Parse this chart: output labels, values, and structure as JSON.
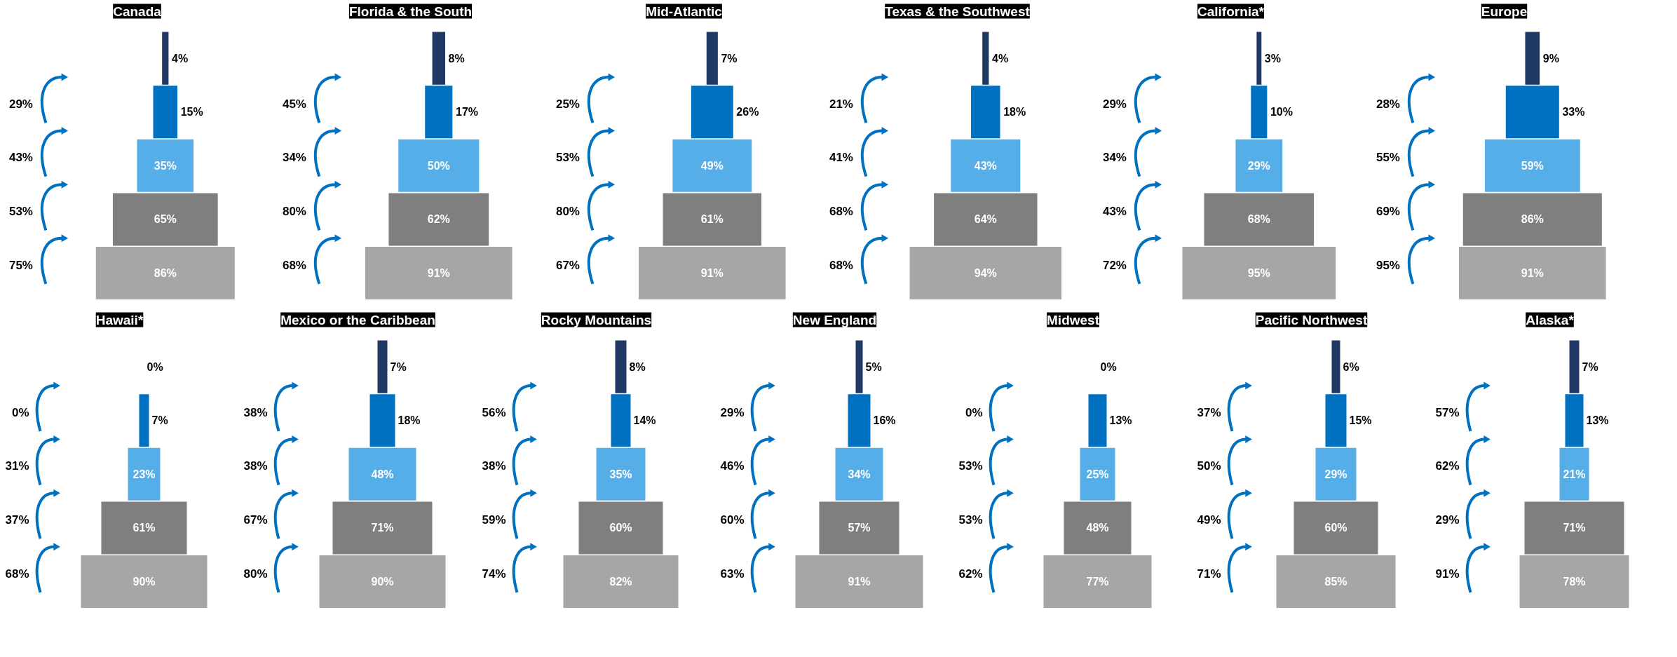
{
  "chart_data": [
    {
      "type": "other",
      "data_labels": true,
      "title": "Canada",
      "categories": [
        null,
        null,
        null,
        null,
        null
      ],
      "values": [
        4,
        15,
        35,
        65,
        86
      ],
      "value_labels": [
        "4%",
        "15%",
        "35%",
        "65%",
        "86%"
      ],
      "colors": [
        "#1f3864",
        "#0070c0",
        "#56aee8",
        "#7f7f7f",
        "#a6a6a6"
      ],
      "annotations": [
        "29%",
        "43%",
        "53%",
        "75%"
      ]
    },
    {
      "type": "other",
      "data_labels": true,
      "title": "Florida & the South",
      "categories": [
        null,
        null,
        null,
        null,
        null
      ],
      "values": [
        8,
        17,
        50,
        62,
        91
      ],
      "value_labels": [
        "8%",
        "17%",
        "50%",
        "62%",
        "91%"
      ],
      "colors": [
        "#1f3864",
        "#0070c0",
        "#56aee8",
        "#7f7f7f",
        "#a6a6a6"
      ],
      "annotations": [
        "45%",
        "34%",
        "80%",
        "68%"
      ]
    },
    {
      "type": "other",
      "data_labels": true,
      "title": "Mid-Atlantic",
      "categories": [
        null,
        null,
        null,
        null,
        null
      ],
      "values": [
        7,
        26,
        49,
        61,
        91
      ],
      "value_labels": [
        "7%",
        "26%",
        "49%",
        "61%",
        "91%"
      ],
      "colors": [
        "#1f3864",
        "#0070c0",
        "#56aee8",
        "#7f7f7f",
        "#a6a6a6"
      ],
      "annotations": [
        "25%",
        "53%",
        "80%",
        "67%"
      ]
    },
    {
      "type": "other",
      "data_labels": true,
      "title": "Texas & the Southwest",
      "categories": [
        null,
        null,
        null,
        null,
        null
      ],
      "values": [
        4,
        18,
        43,
        64,
        94
      ],
      "value_labels": [
        "4%",
        "18%",
        "43%",
        "64%",
        "94%"
      ],
      "colors": [
        "#1f3864",
        "#0070c0",
        "#56aee8",
        "#7f7f7f",
        "#a6a6a6"
      ],
      "annotations": [
        "21%",
        "41%",
        "68%",
        "68%"
      ]
    },
    {
      "type": "other",
      "data_labels": true,
      "title": "California*",
      "categories": [
        null,
        null,
        null,
        null,
        null
      ],
      "values": [
        3,
        10,
        29,
        68,
        95
      ],
      "value_labels": [
        "3%",
        "10%",
        "29%",
        "68%",
        "95%"
      ],
      "colors": [
        "#1f3864",
        "#0070c0",
        "#56aee8",
        "#7f7f7f",
        "#a6a6a6"
      ],
      "annotations": [
        "29%",
        "34%",
        "43%",
        "72%"
      ]
    },
    {
      "type": "other",
      "data_labels": true,
      "title": "Europe",
      "categories": [
        null,
        null,
        null,
        null,
        null
      ],
      "values": [
        9,
        33,
        59,
        86,
        91
      ],
      "value_labels": [
        "9%",
        "33%",
        "59%",
        "86%",
        "91%"
      ],
      "colors": [
        "#1f3864",
        "#0070c0",
        "#56aee8",
        "#7f7f7f",
        "#a6a6a6"
      ],
      "annotations": [
        "28%",
        "55%",
        "69%",
        "95%"
      ]
    },
    {
      "type": "other",
      "data_labels": true,
      "title": "Hawaii*",
      "categories": [
        null,
        null,
        null,
        null,
        null
      ],
      "values": [
        0,
        7,
        23,
        61,
        90
      ],
      "value_labels": [
        "0%",
        "7%",
        "23%",
        "61%",
        "90%"
      ],
      "colors": [
        "#1f3864",
        "#0070c0",
        "#56aee8",
        "#7f7f7f",
        "#a6a6a6"
      ],
      "annotations": [
        "0%",
        "31%",
        "37%",
        "68%"
      ]
    },
    {
      "type": "other",
      "data_labels": true,
      "title": "Mexico or the Caribbean",
      "categories": [
        null,
        null,
        null,
        null,
        null
      ],
      "values": [
        7,
        18,
        48,
        71,
        90
      ],
      "value_labels": [
        "7%",
        "18%",
        "48%",
        "71%",
        "90%"
      ],
      "colors": [
        "#1f3864",
        "#0070c0",
        "#56aee8",
        "#7f7f7f",
        "#a6a6a6"
      ],
      "annotations": [
        "38%",
        "38%",
        "67%",
        "80%"
      ]
    },
    {
      "type": "other",
      "data_labels": true,
      "title": "Rocky Mountains",
      "categories": [
        null,
        null,
        null,
        null,
        null
      ],
      "values": [
        8,
        14,
        35,
        60,
        82
      ],
      "value_labels": [
        "8%",
        "14%",
        "35%",
        "60%",
        "82%"
      ],
      "colors": [
        "#1f3864",
        "#0070c0",
        "#56aee8",
        "#7f7f7f",
        "#a6a6a6"
      ],
      "annotations": [
        "56%",
        "38%",
        "59%",
        "74%"
      ]
    },
    {
      "type": "other",
      "data_labels": true,
      "title": "New England",
      "categories": [
        null,
        null,
        null,
        null,
        null
      ],
      "values": [
        5,
        16,
        34,
        57,
        91
      ],
      "value_labels": [
        "5%",
        "16%",
        "34%",
        "57%",
        "91%"
      ],
      "colors": [
        "#1f3864",
        "#0070c0",
        "#56aee8",
        "#7f7f7f",
        "#a6a6a6"
      ],
      "annotations": [
        "29%",
        "46%",
        "60%",
        "63%"
      ]
    },
    {
      "type": "other",
      "data_labels": true,
      "title": "Midwest",
      "categories": [
        null,
        null,
        null,
        null,
        null
      ],
      "values": [
        0,
        13,
        25,
        48,
        77
      ],
      "value_labels": [
        "0%",
        "13%",
        "25%",
        "48%",
        "77%"
      ],
      "colors": [
        "#1f3864",
        "#0070c0",
        "#56aee8",
        "#7f7f7f",
        "#a6a6a6"
      ],
      "annotations": [
        "0%",
        "53%",
        "53%",
        "62%"
      ]
    },
    {
      "type": "other",
      "data_labels": true,
      "title": "Pacific Northwest",
      "categories": [
        null,
        null,
        null,
        null,
        null
      ],
      "values": [
        6,
        15,
        29,
        60,
        85
      ],
      "value_labels": [
        "6%",
        "15%",
        "29%",
        "60%",
        "85%"
      ],
      "colors": [
        "#1f3864",
        "#0070c0",
        "#56aee8",
        "#7f7f7f",
        "#a6a6a6"
      ],
      "annotations": [
        "37%",
        "50%",
        "49%",
        "71%"
      ]
    },
    {
      "type": "other",
      "data_labels": true,
      "title": "Alaska*",
      "categories": [
        null,
        null,
        null,
        null,
        null
      ],
      "values": [
        7,
        13,
        21,
        71,
        78
      ],
      "value_labels": [
        "7%",
        "13%",
        "21%",
        "71%",
        "78%"
      ],
      "colors": [
        "#1f3864",
        "#0070c0",
        "#56aee8",
        "#7f7f7f",
        "#a6a6a6"
      ],
      "annotations": [
        "57%",
        "62%",
        "29%",
        "91%"
      ]
    }
  ]
}
